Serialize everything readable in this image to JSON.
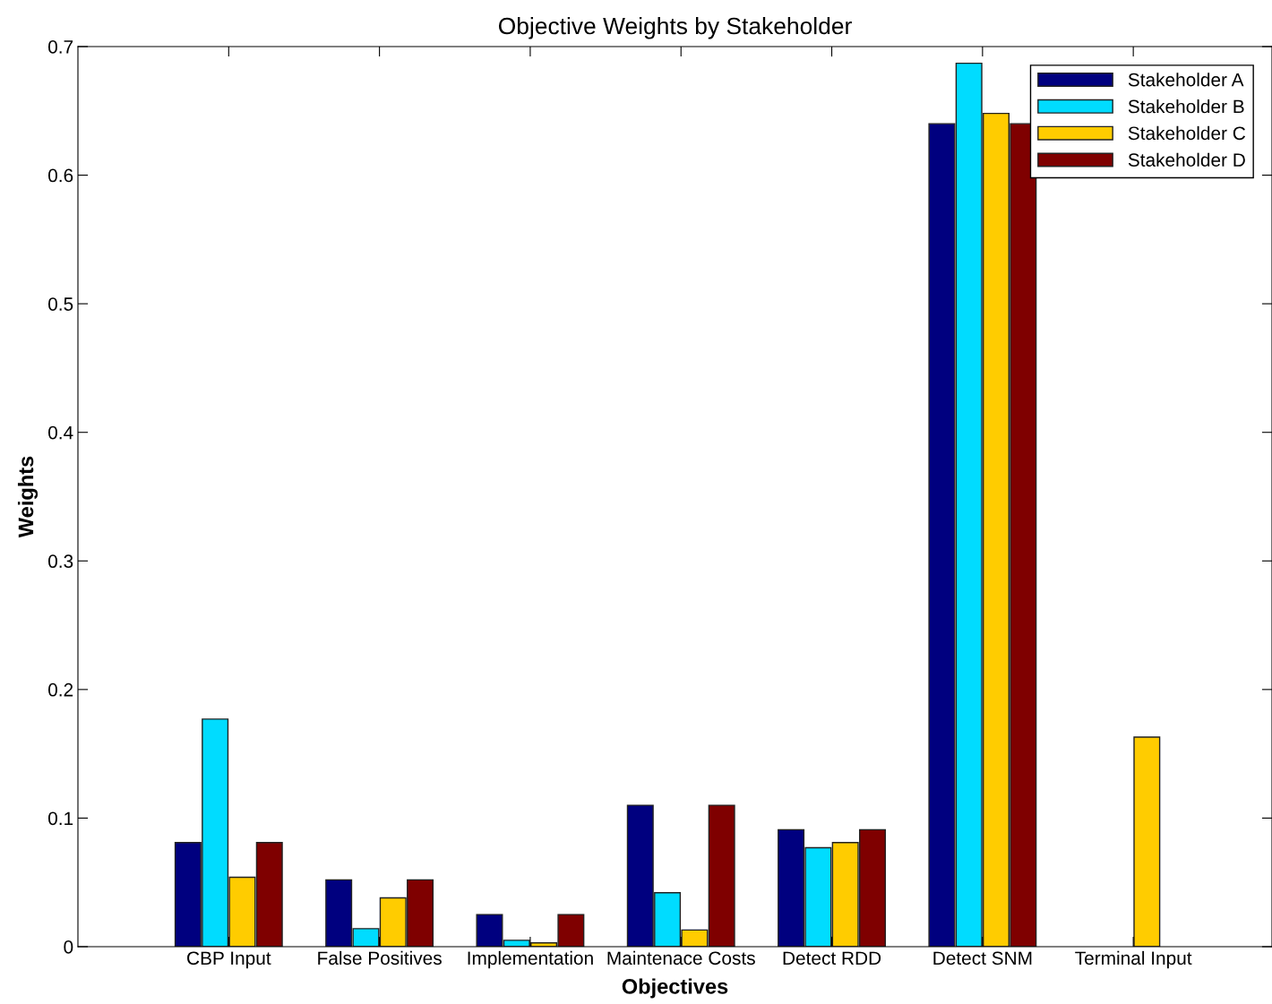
{
  "chart_data": {
    "type": "bar",
    "title": "Objective Weights by Stakeholder",
    "xlabel": "Objectives",
    "ylabel": "Weights",
    "categories": [
      "CBP Input",
      "False Positives",
      "Implementation",
      "Maintenace Costs",
      "Detect RDD",
      "Detect SNM",
      "Terminal Input"
    ],
    "series": [
      {
        "name": "Stakeholder A",
        "color": "#00007f",
        "values": [
          0.081,
          0.052,
          0.025,
          0.11,
          0.091,
          0.64,
          null
        ]
      },
      {
        "name": "Stakeholder B",
        "color": "#00dcff",
        "values": [
          0.177,
          0.014,
          0.005,
          0.042,
          0.077,
          0.687,
          null
        ]
      },
      {
        "name": "Stakeholder C",
        "color": "#ffcc00",
        "values": [
          0.054,
          0.038,
          0.003,
          0.013,
          0.081,
          0.648,
          0.163
        ]
      },
      {
        "name": "Stakeholder D",
        "color": "#7f0000",
        "values": [
          0.081,
          0.052,
          0.025,
          0.11,
          0.091,
          0.64,
          null
        ]
      }
    ],
    "ylim": [
      0,
      0.7
    ],
    "yticks": [
      0,
      0.1,
      0.2,
      0.3,
      0.4,
      0.5,
      0.6,
      0.7
    ],
    "grid": false,
    "legend": "top right"
  }
}
